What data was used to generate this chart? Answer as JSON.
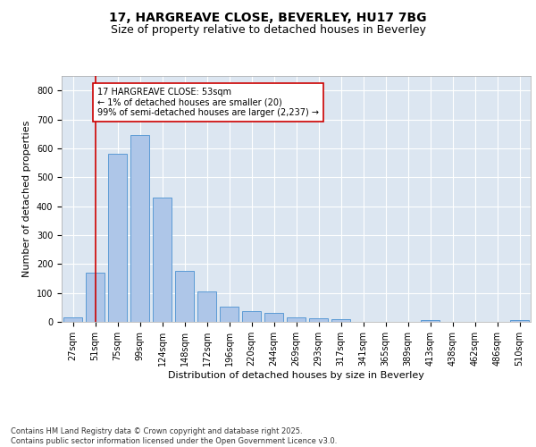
{
  "title1": "17, HARGREAVE CLOSE, BEVERLEY, HU17 7BG",
  "title2": "Size of property relative to detached houses in Beverley",
  "xlabel": "Distribution of detached houses by size in Beverley",
  "ylabel": "Number of detached properties",
  "categories": [
    "27sqm",
    "51sqm",
    "75sqm",
    "99sqm",
    "124sqm",
    "148sqm",
    "172sqm",
    "196sqm",
    "220sqm",
    "244sqm",
    "269sqm",
    "293sqm",
    "317sqm",
    "341sqm",
    "365sqm",
    "389sqm",
    "413sqm",
    "438sqm",
    "462sqm",
    "486sqm",
    "510sqm"
  ],
  "values": [
    17,
    170,
    580,
    645,
    430,
    175,
    105,
    52,
    38,
    30,
    14,
    13,
    9,
    0,
    0,
    0,
    7,
    0,
    0,
    0,
    5
  ],
  "bar_color": "#aec6e8",
  "bar_edge_color": "#5b9bd5",
  "vline_x": 1,
  "vline_color": "#cc0000",
  "annotation_text": "17 HARGREAVE CLOSE: 53sqm\n← 1% of detached houses are smaller (20)\n99% of semi-detached houses are larger (2,237) →",
  "annotation_box_color": "#ffffff",
  "annotation_box_edge": "#cc0000",
  "ylim": [
    0,
    850
  ],
  "yticks": [
    0,
    100,
    200,
    300,
    400,
    500,
    600,
    700,
    800
  ],
  "background_color": "#dce6f1",
  "plot_bg_color": "#dce6f1",
  "footnote": "Contains HM Land Registry data © Crown copyright and database right 2025.\nContains public sector information licensed under the Open Government Licence v3.0.",
  "title1_fontsize": 10,
  "title2_fontsize": 9,
  "xlabel_fontsize": 8,
  "ylabel_fontsize": 8,
  "tick_fontsize": 7,
  "annot_fontsize": 7,
  "footnote_fontsize": 6
}
